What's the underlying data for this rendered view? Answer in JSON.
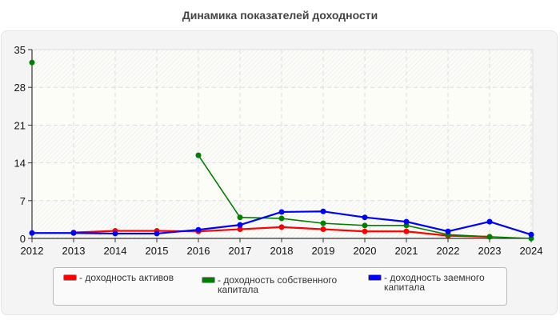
{
  "title": "Динамика показателей доходности",
  "legend": {
    "items": [
      {
        "label": "- доходность активов",
        "color": "#ff0000"
      },
      {
        "label": "- доходность собственного капитала",
        "color": "#008000"
      },
      {
        "label": "- доходность заемного капитала",
        "color": "#0000ff"
      }
    ]
  },
  "chart_data": {
    "type": "line",
    "title": "Динамика показателей доходности",
    "xlabel": "",
    "ylabel": "",
    "categories": [
      "2012",
      "2013",
      "2014",
      "2015",
      "2016",
      "2017",
      "2018",
      "2019",
      "2020",
      "2021",
      "2022",
      "2023",
      "2024"
    ],
    "ylim": [
      0,
      35
    ],
    "yticks": [
      0,
      7,
      14,
      21,
      28,
      35
    ],
    "grid": true,
    "legend_position": "bottom",
    "series": [
      {
        "name": "доходность активов",
        "color": "#ff0000",
        "values": [
          null,
          1.1,
          1.4,
          1.4,
          1.3,
          1.7,
          2.1,
          1.7,
          1.3,
          1.3,
          0.5,
          0.3,
          null
        ]
      },
      {
        "name": "доходность собственного капитала",
        "color": "#008000",
        "values": [
          32.6,
          null,
          null,
          null,
          15.4,
          3.9,
          3.7,
          2.8,
          2.4,
          2.4,
          0.7,
          0.3,
          0.0
        ]
      },
      {
        "name": "доходность заемного капитала",
        "color": "#0000ff",
        "values": [
          1.0,
          1.0,
          0.9,
          0.9,
          1.6,
          2.5,
          4.9,
          5.0,
          3.9,
          3.1,
          1.3,
          3.1,
          0.7
        ]
      }
    ]
  }
}
